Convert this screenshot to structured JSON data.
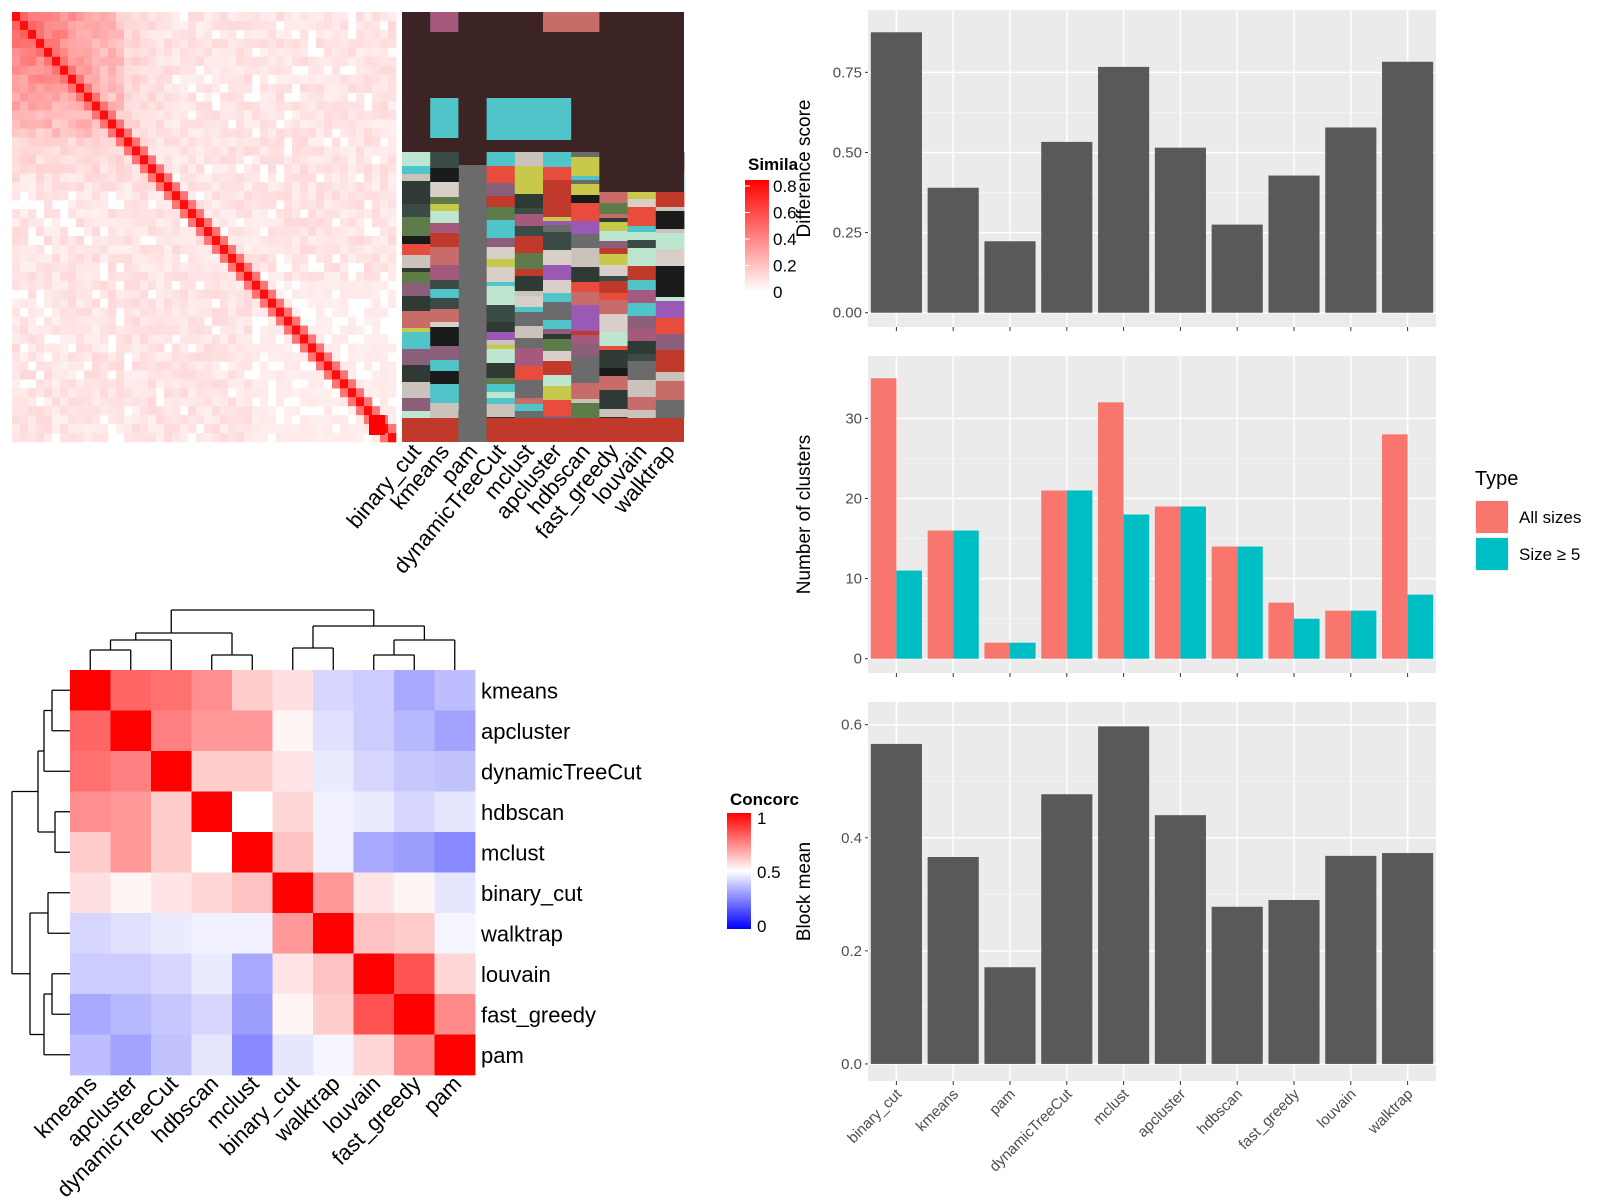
{
  "colors": {
    "panel_bg": "#ebebeb",
    "grid": "#ffffff",
    "bar": "#595959",
    "all_sizes": "#f8766d",
    "size_ge5": "#00bfc4",
    "heat_high": "#ff0000",
    "heat_mid": "#ffffff",
    "heat_low": "#0000ff",
    "label_matrix_bg": "#3c2425"
  },
  "similarity_heatmap": {
    "legend_title": "Simila",
    "legend_ticks": [
      "0.8",
      "0.6",
      "0.4",
      "0.2",
      "0"
    ]
  },
  "label_matrix": {
    "columns": [
      "binary_cut",
      "kmeans",
      "pam",
      "dynamicTreeCut",
      "mclust",
      "apcluster",
      "hdbscan",
      "fast_greedy",
      "louvain",
      "walktrap"
    ]
  },
  "concordance": {
    "legend_title": "Concorc",
    "legend_ticks": [
      "1",
      "0.5",
      "0"
    ]
  },
  "chart_data": [
    {
      "type": "bar",
      "categories": [
        "binary_cut",
        "kmeans",
        "pam",
        "dynamicTreeCut",
        "mclust",
        "apcluster",
        "hdbscan",
        "fast_greedy",
        "louvain",
        "walktrap"
      ],
      "values": [
        0.875,
        0.39,
        0.223,
        0.533,
        0.767,
        0.515,
        0.275,
        0.428,
        0.578,
        0.783
      ],
      "ylabel": "Difference score",
      "ylim": [
        0,
        0.9
      ],
      "yticks": [
        "0.00",
        "0.25",
        "0.50",
        "0.75"
      ]
    },
    {
      "type": "bar",
      "categories": [
        "binary_cut",
        "kmeans",
        "pam",
        "dynamicTreeCut",
        "mclust",
        "apcluster",
        "hdbscan",
        "fast_greedy",
        "louvain",
        "walktrap"
      ],
      "series": [
        {
          "name": "All sizes",
          "values": [
            35,
            16,
            2,
            21,
            32,
            19,
            14,
            7,
            6,
            28
          ]
        },
        {
          "name": "Size ≥ 5",
          "values": [
            11,
            16,
            2,
            21,
            18,
            19,
            14,
            5,
            6,
            8
          ]
        }
      ],
      "ylabel": "Number of clusters",
      "ylim": [
        0,
        36
      ],
      "yticks": [
        "0",
        "10",
        "20",
        "30"
      ],
      "legend_title": "Type",
      "legend_position": "right"
    },
    {
      "type": "bar",
      "categories": [
        "binary_cut",
        "kmeans",
        "pam",
        "dynamicTreeCut",
        "mclust",
        "apcluster",
        "hdbscan",
        "fast_greedy",
        "louvain",
        "walktrap"
      ],
      "values": [
        0.566,
        0.366,
        0.171,
        0.477,
        0.597,
        0.44,
        0.278,
        0.29,
        0.368,
        0.373
      ],
      "ylabel": "Block mean",
      "ylim": [
        0,
        0.61
      ],
      "yticks": [
        "0.0",
        "0.2",
        "0.4",
        "0.6"
      ]
    },
    {
      "type": "heatmap",
      "rows": [
        "kmeans",
        "apcluster",
        "dynamicTreeCut",
        "hdbscan",
        "mclust",
        "binary_cut",
        "walktrap",
        "louvain",
        "fast_greedy",
        "pam"
      ],
      "columns": [
        "kmeans",
        "apcluster",
        "dynamicTreeCut",
        "hdbscan",
        "mclust",
        "binary_cut",
        "walktrap",
        "louvain",
        "fast_greedy",
        "pam"
      ],
      "values": [
        [
          1.0,
          0.8,
          0.78,
          0.72,
          0.6,
          0.56,
          0.42,
          0.4,
          0.33,
          0.37
        ],
        [
          0.8,
          1.0,
          0.75,
          0.7,
          0.7,
          0.52,
          0.44,
          0.4,
          0.36,
          0.32
        ],
        [
          0.78,
          0.75,
          1.0,
          0.6,
          0.6,
          0.55,
          0.46,
          0.42,
          0.39,
          0.38
        ],
        [
          0.72,
          0.7,
          0.6,
          1.0,
          0.5,
          0.58,
          0.47,
          0.46,
          0.42,
          0.45
        ],
        [
          0.6,
          0.7,
          0.6,
          0.5,
          1.0,
          0.62,
          0.47,
          0.33,
          0.31,
          0.27
        ],
        [
          0.56,
          0.52,
          0.55,
          0.58,
          0.62,
          1.0,
          0.7,
          0.55,
          0.52,
          0.45
        ],
        [
          0.42,
          0.44,
          0.46,
          0.47,
          0.47,
          0.7,
          1.0,
          0.62,
          0.6,
          0.48
        ],
        [
          0.4,
          0.4,
          0.42,
          0.46,
          0.33,
          0.55,
          0.62,
          1.0,
          0.84,
          0.58
        ],
        [
          0.33,
          0.36,
          0.39,
          0.42,
          0.31,
          0.52,
          0.6,
          0.84,
          1.0,
          0.73
        ],
        [
          0.37,
          0.32,
          0.38,
          0.45,
          0.27,
          0.45,
          0.48,
          0.58,
          0.73,
          1.0
        ]
      ]
    }
  ]
}
